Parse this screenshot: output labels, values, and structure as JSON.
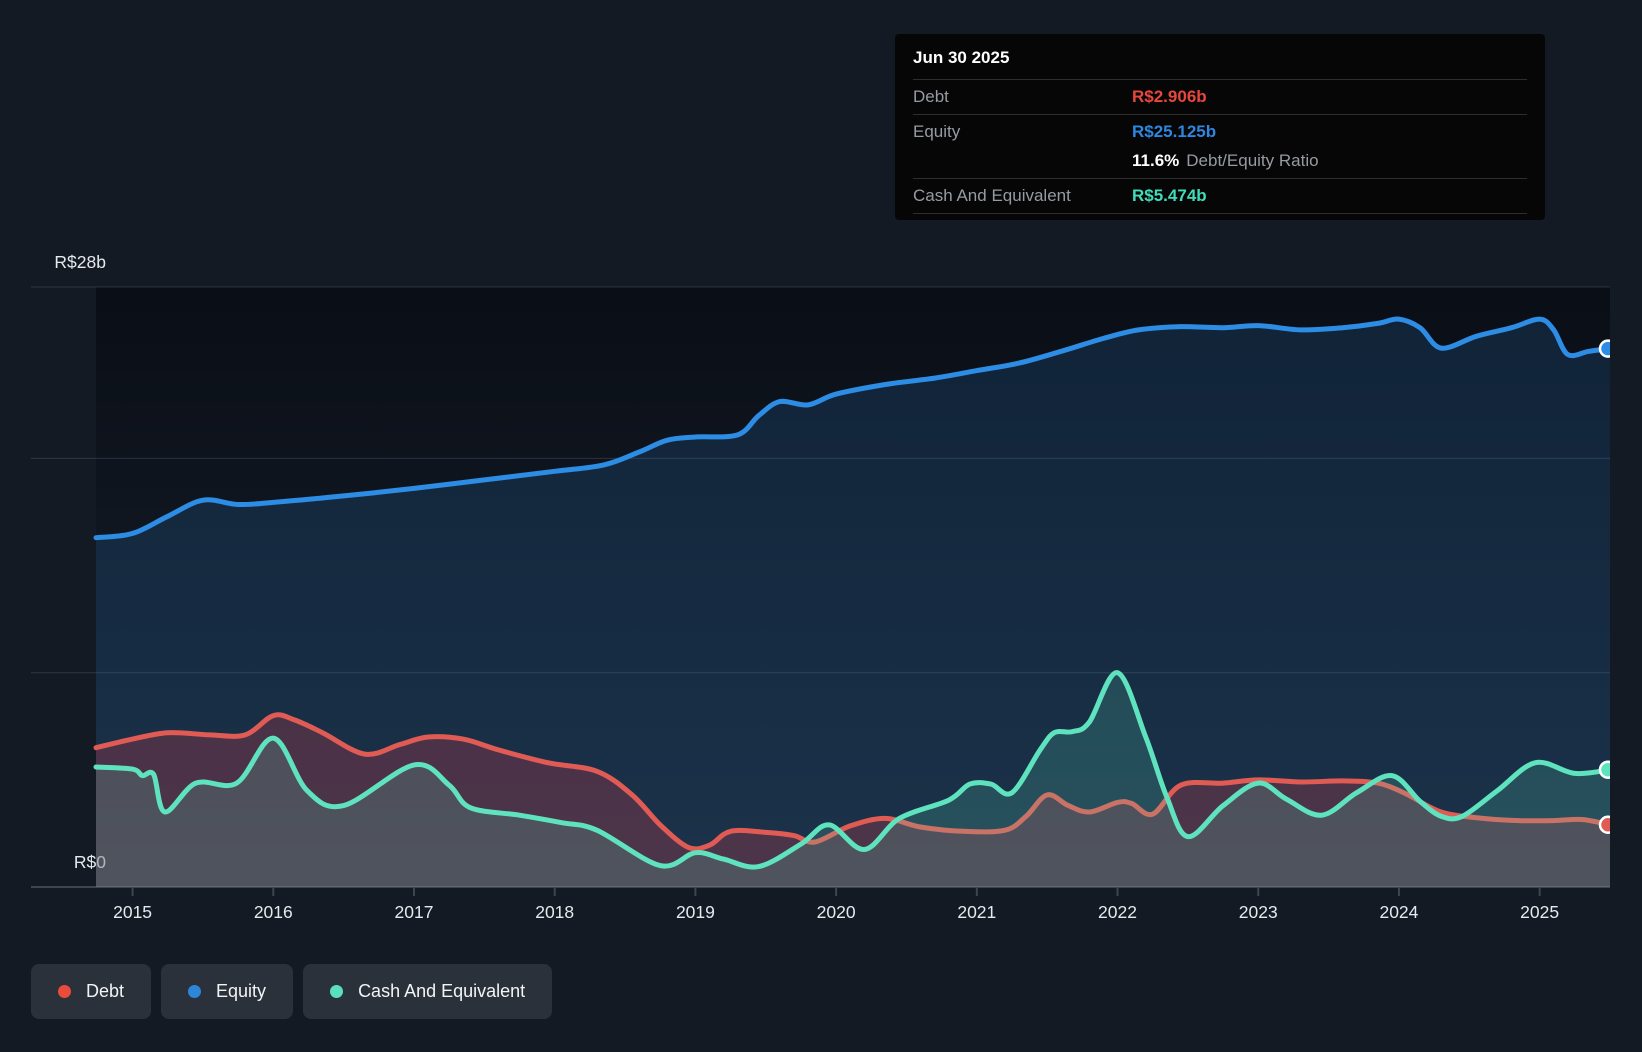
{
  "tooltip": {
    "date": "Jun 30 2025",
    "debt_label": "Debt",
    "debt_value": "R$2.906b",
    "equity_label": "Equity",
    "equity_value": "R$25.125b",
    "ratio_value": "11.6%",
    "ratio_label": "Debt/Equity Ratio",
    "cash_label": "Cash And Equivalent",
    "cash_value": "R$5.474b"
  },
  "legend": {
    "debt": "Debt",
    "equity": "Equity",
    "cash": "Cash And Equivalent"
  },
  "colors": {
    "debt": "#e15b55",
    "debt_text": "#e8473d",
    "equity": "#2d8ce4",
    "equity_text": "#2d86e0",
    "cash": "#5fe3bf",
    "cash_text": "#40dcba",
    "page_bg": "#141a24",
    "tooltip_bg": "#060606",
    "legend_chip_bg": "#2b313a",
    "axis_text": "#e6e9ed",
    "gridline": "rgba(160,172,188,0.20)",
    "axis_line": "#3e454f"
  },
  "chart_data": {
    "type": "area",
    "title": "",
    "currency_unit": "R$ billions",
    "x_range": [
      2014.74,
      2025.5
    ],
    "y_range": [
      0,
      28
    ],
    "y_gridlines": [
      28,
      20,
      10,
      0
    ],
    "y_tick_labels": {
      "28": "R$28b",
      "0": "R$0"
    },
    "x_ticks": [
      2015,
      2016,
      2017,
      2018,
      2019,
      2020,
      2021,
      2022,
      2023,
      2024,
      2025
    ],
    "legend_position": "bottom-left",
    "series": [
      {
        "name": "Equity",
        "color": "#2d8ce4",
        "fill": "rgba(45,134,222,0.17)",
        "points": [
          [
            2014.74,
            16.3
          ],
          [
            2015.0,
            16.5
          ],
          [
            2015.25,
            17.3
          ],
          [
            2015.5,
            18.05
          ],
          [
            2015.75,
            17.85
          ],
          [
            2016.0,
            17.95
          ],
          [
            2016.5,
            18.25
          ],
          [
            2017.0,
            18.6
          ],
          [
            2017.5,
            19.0
          ],
          [
            2018.0,
            19.4
          ],
          [
            2018.35,
            19.7
          ],
          [
            2018.6,
            20.3
          ],
          [
            2018.8,
            20.85
          ],
          [
            2019.0,
            21.0
          ],
          [
            2019.3,
            21.1
          ],
          [
            2019.45,
            22.0
          ],
          [
            2019.6,
            22.65
          ],
          [
            2019.8,
            22.5
          ],
          [
            2020.0,
            23.0
          ],
          [
            2020.35,
            23.45
          ],
          [
            2020.7,
            23.75
          ],
          [
            2021.0,
            24.1
          ],
          [
            2021.3,
            24.45
          ],
          [
            2021.6,
            25.0
          ],
          [
            2021.9,
            25.6
          ],
          [
            2022.15,
            26.0
          ],
          [
            2022.45,
            26.15
          ],
          [
            2022.75,
            26.1
          ],
          [
            2023.0,
            26.2
          ],
          [
            2023.3,
            26.0
          ],
          [
            2023.6,
            26.1
          ],
          [
            2023.85,
            26.3
          ],
          [
            2024.0,
            26.5
          ],
          [
            2024.15,
            26.1
          ],
          [
            2024.3,
            25.15
          ],
          [
            2024.55,
            25.7
          ],
          [
            2024.8,
            26.1
          ],
          [
            2025.0,
            26.5
          ],
          [
            2025.1,
            26.0
          ],
          [
            2025.2,
            24.85
          ],
          [
            2025.35,
            25.0
          ],
          [
            2025.5,
            25.125
          ]
        ]
      },
      {
        "name": "Debt",
        "color": "#e15b55",
        "fill": "rgba(206,62,76,0.28)",
        "points": [
          [
            2014.74,
            6.5
          ],
          [
            2015.0,
            6.9
          ],
          [
            2015.25,
            7.2
          ],
          [
            2015.55,
            7.1
          ],
          [
            2015.8,
            7.1
          ],
          [
            2016.0,
            8.0
          ],
          [
            2016.15,
            7.8
          ],
          [
            2016.35,
            7.2
          ],
          [
            2016.65,
            6.2
          ],
          [
            2016.9,
            6.65
          ],
          [
            2017.1,
            7.0
          ],
          [
            2017.35,
            6.9
          ],
          [
            2017.6,
            6.4
          ],
          [
            2017.95,
            5.8
          ],
          [
            2018.3,
            5.4
          ],
          [
            2018.55,
            4.3
          ],
          [
            2018.75,
            2.9
          ],
          [
            2018.95,
            1.85
          ],
          [
            2019.1,
            1.95
          ],
          [
            2019.25,
            2.6
          ],
          [
            2019.5,
            2.55
          ],
          [
            2019.7,
            2.4
          ],
          [
            2019.85,
            2.1
          ],
          [
            2020.1,
            2.85
          ],
          [
            2020.35,
            3.2
          ],
          [
            2020.6,
            2.8
          ],
          [
            2020.9,
            2.6
          ],
          [
            2021.2,
            2.65
          ],
          [
            2021.35,
            3.3
          ],
          [
            2021.5,
            4.3
          ],
          [
            2021.65,
            3.8
          ],
          [
            2021.8,
            3.5
          ],
          [
            2022.0,
            3.95
          ],
          [
            2022.1,
            3.9
          ],
          [
            2022.25,
            3.4
          ],
          [
            2022.45,
            4.75
          ],
          [
            2022.75,
            4.85
          ],
          [
            2023.0,
            5.0
          ],
          [
            2023.3,
            4.9
          ],
          [
            2023.6,
            4.95
          ],
          [
            2023.85,
            4.85
          ],
          [
            2024.05,
            4.35
          ],
          [
            2024.3,
            3.5
          ],
          [
            2024.6,
            3.2
          ],
          [
            2024.85,
            3.1
          ],
          [
            2025.1,
            3.1
          ],
          [
            2025.3,
            3.15
          ],
          [
            2025.5,
            2.906
          ]
        ]
      },
      {
        "name": "Cash And Equivalent",
        "color": "#5fe3bf",
        "fill": "rgba(96,219,185,0.18)",
        "points": [
          [
            2014.74,
            5.6
          ],
          [
            2015.0,
            5.5
          ],
          [
            2015.07,
            5.2
          ],
          [
            2015.15,
            5.25
          ],
          [
            2015.23,
            3.5
          ],
          [
            2015.45,
            4.85
          ],
          [
            2015.74,
            4.85
          ],
          [
            2016.0,
            6.95
          ],
          [
            2016.24,
            4.5
          ],
          [
            2016.5,
            3.8
          ],
          [
            2017.0,
            5.7
          ],
          [
            2017.25,
            4.75
          ],
          [
            2017.4,
            3.7
          ],
          [
            2017.75,
            3.35
          ],
          [
            2018.05,
            3.0
          ],
          [
            2018.3,
            2.65
          ],
          [
            2018.75,
            1.0
          ],
          [
            2019.0,
            1.6
          ],
          [
            2019.2,
            1.3
          ],
          [
            2019.45,
            0.95
          ],
          [
            2019.75,
            2.0
          ],
          [
            2019.95,
            2.9
          ],
          [
            2020.2,
            1.75
          ],
          [
            2020.45,
            3.2
          ],
          [
            2020.8,
            4.05
          ],
          [
            2020.95,
            4.8
          ],
          [
            2021.1,
            4.8
          ],
          [
            2021.25,
            4.4
          ],
          [
            2021.45,
            6.4
          ],
          [
            2021.55,
            7.2
          ],
          [
            2021.68,
            7.25
          ],
          [
            2021.8,
            7.7
          ],
          [
            2022.0,
            10.0
          ],
          [
            2022.2,
            7.0
          ],
          [
            2022.35,
            4.2
          ],
          [
            2022.5,
            2.35
          ],
          [
            2022.75,
            3.8
          ],
          [
            2023.0,
            4.85
          ],
          [
            2023.2,
            4.1
          ],
          [
            2023.45,
            3.35
          ],
          [
            2023.7,
            4.4
          ],
          [
            2023.95,
            5.2
          ],
          [
            2024.15,
            4.0
          ],
          [
            2024.3,
            3.3
          ],
          [
            2024.45,
            3.3
          ],
          [
            2024.7,
            4.5
          ],
          [
            2024.97,
            5.8
          ],
          [
            2025.25,
            5.3
          ],
          [
            2025.5,
            5.474
          ]
        ]
      }
    ],
    "end_markers": [
      {
        "series": "Equity",
        "x": 2025.5,
        "y": 25.125
      },
      {
        "series": "Cash And Equivalent",
        "x": 2025.5,
        "y": 5.474
      },
      {
        "series": "Debt",
        "x": 2025.5,
        "y": 2.906
      }
    ]
  }
}
